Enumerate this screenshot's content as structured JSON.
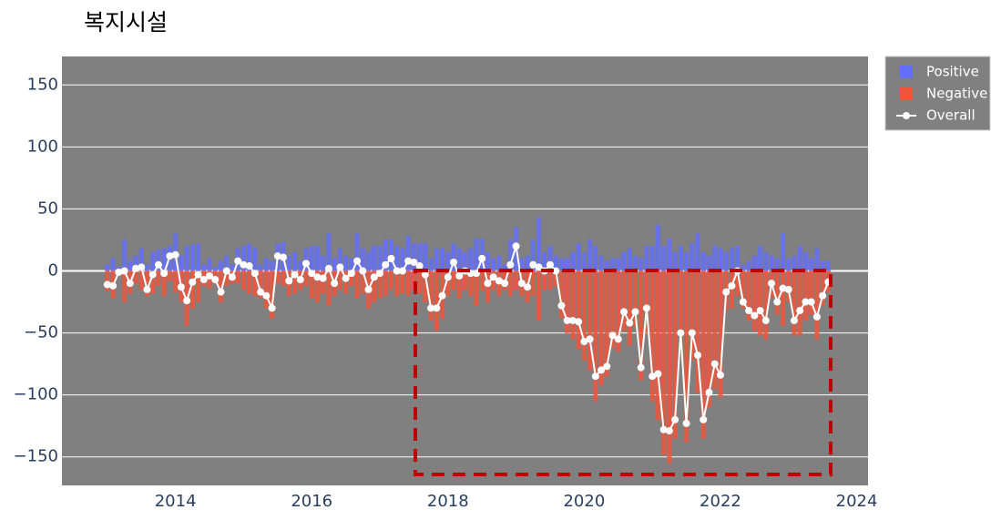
{
  "chart_data": {
    "type": "bar_line",
    "title": "복지시설",
    "x": [
      "2013-01",
      "2013-02",
      "2013-03",
      "2013-04",
      "2013-05",
      "2013-06",
      "2013-07",
      "2013-08",
      "2013-09",
      "2013-10",
      "2013-11",
      "2013-12",
      "2014-01",
      "2014-02",
      "2014-03",
      "2014-04",
      "2014-05",
      "2014-06",
      "2014-07",
      "2014-08",
      "2014-09",
      "2014-10",
      "2014-11",
      "2014-12",
      "2015-01",
      "2015-02",
      "2015-03",
      "2015-04",
      "2015-05",
      "2015-06",
      "2015-07",
      "2015-08",
      "2015-09",
      "2015-10",
      "2015-11",
      "2015-12",
      "2016-01",
      "2016-02",
      "2016-03",
      "2016-04",
      "2016-05",
      "2016-06",
      "2016-07",
      "2016-08",
      "2016-09",
      "2016-10",
      "2016-11",
      "2016-12",
      "2017-01",
      "2017-02",
      "2017-03",
      "2017-04",
      "2017-05",
      "2017-06",
      "2017-07",
      "2017-08",
      "2017-09",
      "2017-10",
      "2017-11",
      "2017-12",
      "2018-01",
      "2018-02",
      "2018-03",
      "2018-04",
      "2018-05",
      "2018-06",
      "2018-07",
      "2018-08",
      "2018-09",
      "2018-10",
      "2018-11",
      "2018-12",
      "2019-01",
      "2019-02",
      "2019-03",
      "2019-04",
      "2019-05",
      "2019-06",
      "2019-07",
      "2019-08",
      "2019-09",
      "2019-10",
      "2019-11",
      "2019-12",
      "2020-01",
      "2020-02",
      "2020-03",
      "2020-04",
      "2020-05",
      "2020-06",
      "2020-07",
      "2020-08",
      "2020-09",
      "2020-10",
      "2020-11",
      "2020-12",
      "2021-01",
      "2021-02",
      "2021-03",
      "2021-04",
      "2021-05",
      "2021-06",
      "2021-07",
      "2021-08",
      "2021-09",
      "2021-10",
      "2021-11",
      "2021-12",
      "2022-01",
      "2022-02",
      "2022-03",
      "2022-04",
      "2022-05",
      "2022-06",
      "2022-07",
      "2022-08",
      "2022-09",
      "2022-10",
      "2022-11",
      "2022-12",
      "2023-01",
      "2023-02",
      "2023-03",
      "2023-04",
      "2023-05",
      "2023-06",
      "2023-07",
      "2023-08"
    ],
    "series": [
      {
        "name": "Positive",
        "color": "#636efa",
        "values": [
          5,
          10,
          3,
          25,
          8,
          12,
          18,
          5,
          15,
          17,
          18,
          20,
          30,
          12,
          20,
          21,
          22,
          5,
          10,
          3,
          8,
          12,
          5,
          18,
          20,
          22,
          18,
          5,
          10,
          8,
          22,
          23,
          12,
          15,
          8,
          18,
          20,
          20,
          12,
          30,
          10,
          18,
          12,
          10,
          30,
          18,
          15,
          20,
          20,
          25,
          25,
          20,
          18,
          28,
          22,
          22,
          22,
          10,
          18,
          18,
          15,
          22,
          18,
          15,
          18,
          26,
          26,
          15,
          10,
          12,
          5,
          25,
          35,
          10,
          12,
          25,
          43,
          15,
          20,
          12,
          10,
          10,
          15,
          22,
          15,
          25,
          20,
          12,
          8,
          10,
          10,
          15,
          18,
          12,
          10,
          20,
          20,
          37,
          20,
          26,
          15,
          20,
          15,
          22,
          30,
          15,
          12,
          20,
          18,
          15,
          18,
          20,
          5,
          8,
          12,
          20,
          15,
          12,
          10,
          30,
          10,
          12,
          20,
          15,
          10,
          18,
          8,
          8
        ]
      },
      {
        "name": "Negative",
        "color": "#ef553b",
        "values": [
          -16,
          -22,
          -4,
          -25,
          -18,
          -10,
          -15,
          -20,
          -18,
          -12,
          -20,
          -8,
          -17,
          -25,
          -44,
          -30,
          -25,
          -12,
          -14,
          -10,
          -25,
          -12,
          -10,
          -10,
          -15,
          -18,
          -20,
          -22,
          -30,
          -38,
          -10,
          -12,
          -20,
          -18,
          -15,
          -12,
          -22,
          -25,
          -18,
          -28,
          -20,
          -15,
          -18,
          -12,
          -22,
          -18,
          -30,
          -25,
          -22,
          -20,
          -15,
          -20,
          -18,
          -20,
          -15,
          -18,
          -25,
          -40,
          -48,
          -38,
          -20,
          -15,
          -22,
          -15,
          -20,
          -28,
          -16,
          -25,
          -15,
          -20,
          -15,
          -20,
          -15,
          -20,
          -25,
          -20,
          -40,
          -15,
          -15,
          -12,
          -38,
          -50,
          -55,
          -63,
          -72,
          -80,
          -105,
          -92,
          -85,
          -62,
          -65,
          -48,
          -60,
          -45,
          -88,
          -50,
          -105,
          -120,
          -148,
          -155,
          -135,
          -70,
          -138,
          -72,
          -98,
          -135,
          -110,
          -95,
          -102,
          -32,
          -30,
          -20,
          -30,
          -40,
          -48,
          -52,
          -55,
          -22,
          -35,
          -44,
          -25,
          -52,
          -52,
          -40,
          -35,
          -55,
          -28,
          -17
        ]
      },
      {
        "name": "Overall",
        "color": "#ffffff",
        "values": [
          -11,
          -12,
          -1,
          0,
          -10,
          2,
          3,
          -15,
          -3,
          5,
          -2,
          12,
          13,
          -13,
          -24,
          -9,
          -3,
          -7,
          -4,
          -7,
          -17,
          0,
          -5,
          8,
          5,
          4,
          -2,
          -17,
          -20,
          -30,
          12,
          11,
          -8,
          -3,
          -7,
          6,
          -2,
          -5,
          -6,
          2,
          -10,
          3,
          -6,
          -2,
          8,
          0,
          -15,
          -5,
          -2,
          5,
          10,
          0,
          0,
          8,
          7,
          4,
          -3,
          -30,
          -30,
          -20,
          -5,
          7,
          -4,
          0,
          -2,
          -2,
          10,
          -10,
          -5,
          -8,
          -10,
          5,
          20,
          -10,
          -13,
          5,
          3,
          0,
          5,
          0,
          -28,
          -40,
          -40,
          -41,
          -57,
          -55,
          -85,
          -80,
          -77,
          -52,
          -55,
          -33,
          -42,
          -33,
          -78,
          -30,
          -85,
          -83,
          -128,
          -129,
          -120,
          -50,
          -123,
          -50,
          -68,
          -120,
          -98,
          -75,
          -84,
          -17,
          -12,
          0,
          -25,
          -32,
          -36,
          -32,
          -40,
          -10,
          -25,
          -14,
          -15,
          -40,
          -32,
          -25,
          -25,
          -37,
          -20,
          -9
        ]
      }
    ],
    "xlim": [
      "2012-05",
      "2024-03"
    ],
    "xticks": [
      2014,
      2016,
      2018,
      2020,
      2022,
      2024
    ],
    "ylim": [
      -173,
      173
    ],
    "yticks": [
      {
        "value": -150,
        "label": "−150"
      },
      {
        "value": -100,
        "label": "−100"
      },
      {
        "value": -50,
        "label": "−50"
      },
      0,
      50,
      100,
      150
    ],
    "grid": true,
    "legend": "outside-right"
  }
}
